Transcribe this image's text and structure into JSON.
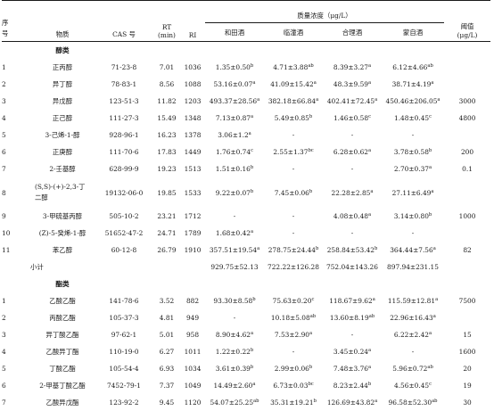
{
  "headers": {
    "no": "序号",
    "name": "物质",
    "cas": "CAS 号",
    "rt": "RT",
    "rt_unit": "(min)",
    "ri": "RI",
    "conc": "质量浓度（μg/L）",
    "threshold": "阈值",
    "threshold_unit": "(μg/L)",
    "wines": [
      "和田酒",
      "临潼酒",
      "合理酒",
      "蒙自酒"
    ]
  },
  "sections": [
    {
      "title": "醇类",
      "rows": [
        {
          "no": "1",
          "name": "正丙醇",
          "cas": "71-23-8",
          "rt": "7.01",
          "ri": "1036",
          "v": [
            [
              "1.35±0.50",
              "b"
            ],
            [
              "4.71±3.88",
              "ab"
            ],
            [
              "8.39±3.27",
              "a"
            ],
            [
              "6.12±4.66",
              "ab"
            ]
          ],
          "thr": ""
        },
        {
          "no": "2",
          "name": "异丁醇",
          "cas": "78-83-1",
          "rt": "8.56",
          "ri": "1088",
          "v": [
            [
              "53.16±0.07",
              "a"
            ],
            [
              "41.09±15.42",
              "a"
            ],
            [
              "48.3±9.59",
              "a"
            ],
            [
              "38.71±4.19",
              "a"
            ]
          ],
          "thr": ""
        },
        {
          "no": "3",
          "name": "异戊醇",
          "cas": "123-51-3",
          "rt": "11.82",
          "ri": "1203",
          "v": [
            [
              "493.37±28.56",
              "a"
            ],
            [
              "382.18±66.84",
              "a"
            ],
            [
              "402.41±72.45",
              "a"
            ],
            [
              "450.46±206.05",
              "a"
            ]
          ],
          "thr": "3000"
        },
        {
          "no": "4",
          "name": "正己醇",
          "cas": "111-27-3",
          "rt": "15.49",
          "ri": "1348",
          "v": [
            [
              "7.13±0.87",
              "a"
            ],
            [
              "5.49±0.85",
              "b"
            ],
            [
              "1.46±0.58",
              "c"
            ],
            [
              "1.48±0.45",
              "c"
            ]
          ],
          "thr": "4800"
        },
        {
          "no": "5",
          "name": "3-己烯-1-醇",
          "cas": "928-96-1",
          "rt": "16.23",
          "ri": "1378",
          "v": [
            [
              "3.06±1.2",
              "a"
            ],
            [
              "-",
              ""
            ],
            [
              "-",
              ""
            ],
            [
              "-",
              ""
            ]
          ],
          "thr": ""
        },
        {
          "no": "6",
          "name": "正庚醇",
          "cas": "111-70-6",
          "rt": "17.83",
          "ri": "1449",
          "v": [
            [
              "1.76±0.74",
              "c"
            ],
            [
              "2.55±1.37",
              "bc"
            ],
            [
              "6.28±0.62",
              "a"
            ],
            [
              "3.78±0.58",
              "b"
            ]
          ],
          "thr": "200"
        },
        {
          "no": "7",
          "name": "2-壬基醇",
          "cas": "628-99-9",
          "rt": "19.23",
          "ri": "1513",
          "v": [
            [
              "1.51±0.16",
              "b"
            ],
            [
              "-",
              ""
            ],
            [
              "-",
              ""
            ],
            [
              "2.70±0.37",
              "a"
            ]
          ],
          "thr": "0.1"
        },
        {
          "no": "8",
          "name": "(S,S)-(+)-2,3-丁二醇",
          "cas": "19132-06-0",
          "rt": "19.85",
          "ri": "1533",
          "v": [
            [
              "9.22±0.07",
              "b"
            ],
            [
              "7.45±0.06",
              "b"
            ],
            [
              "22.28±2.85",
              "a"
            ],
            [
              "27.11±6.49",
              "a"
            ]
          ],
          "thr": "",
          "tall": true
        },
        {
          "no": "9",
          "name": "3-甲硫基丙醇",
          "cas": "505-10-2",
          "rt": "23.21",
          "ri": "1712",
          "v": [
            [
              "-",
              ""
            ],
            [
              "-",
              ""
            ],
            [
              "4.08±0.48",
              "a"
            ],
            [
              "3.14±0.80",
              "b"
            ]
          ],
          "thr": "1000"
        },
        {
          "no": "10",
          "name": "(Z)-5-癸烯-1-醇",
          "cas": "51652-47-2",
          "rt": "24.71",
          "ri": "1789",
          "v": [
            [
              "1.68±0.42",
              "a"
            ],
            [
              "-",
              ""
            ],
            [
              "-",
              ""
            ],
            [
              "-",
              ""
            ]
          ],
          "thr": ""
        },
        {
          "no": "11",
          "name": "苯乙醇",
          "cas": "60-12-8",
          "rt": "26.79",
          "ri": "1910",
          "v": [
            [
              "357.51±19.54",
              "a"
            ],
            [
              "278.75±24.44",
              "b"
            ],
            [
              "258.84±53.42",
              "b"
            ],
            [
              "364.44±7.56",
              "a"
            ]
          ],
          "thr": "82"
        }
      ],
      "subtotal": {
        "label": "小计",
        "v": [
          "929.75±52.13",
          "722.22±126.28",
          "752.04±143.26",
          "897.94±231.15"
        ]
      }
    },
    {
      "title": "酯类",
      "rows": [
        {
          "no": "1",
          "name": "乙酸乙酯",
          "cas": "141-78-6",
          "rt": "3.52",
          "ri": "882",
          "v": [
            [
              "93.30±8.58",
              "b"
            ],
            [
              "75.63±0.20",
              "c"
            ],
            [
              "118.67±9.62",
              "a"
            ],
            [
              "115.59±12.81",
              "a"
            ]
          ],
          "thr": "7500"
        },
        {
          "no": "2",
          "name": "丙酸乙酯",
          "cas": "105-37-3",
          "rt": "4.81",
          "ri": "949",
          "v": [
            [
              "-",
              ""
            ],
            [
              "10.18±5.08",
              "ab"
            ],
            [
              "13.60±8.19",
              "ab"
            ],
            [
              "22.96±16.43",
              "a"
            ]
          ],
          "thr": ""
        },
        {
          "no": "3",
          "name": "异丁酸乙酯",
          "cas": "97-62-1",
          "rt": "5.01",
          "ri": "958",
          "v": [
            [
              "8.90±4.62",
              "a"
            ],
            [
              "7.53±2.90",
              "a"
            ],
            [
              "-",
              ""
            ],
            [
              "6.22±2.42",
              "a"
            ]
          ],
          "thr": "15"
        },
        {
          "no": "4",
          "name": "乙酸异丁酯",
          "cas": "110-19-0",
          "rt": "6.27",
          "ri": "1011",
          "v": [
            [
              "1.22±0.22",
              "b"
            ],
            [
              "-",
              ""
            ],
            [
              "3.45±0.24",
              "a"
            ],
            [
              "-",
              ""
            ]
          ],
          "thr": "1600"
        },
        {
          "no": "5",
          "name": "丁酸乙酯",
          "cas": "105-54-4",
          "rt": "6.93",
          "ri": "1034",
          "v": [
            [
              "3.61±0.39",
              "b"
            ],
            [
              "2.99±0.06",
              "b"
            ],
            [
              "7.48±3.76",
              "a"
            ],
            [
              "5.96±0.72",
              "ab"
            ]
          ],
          "thr": "20"
        },
        {
          "no": "6",
          "name": "2-甲基丁酸乙酯",
          "cas": "7452-79-1",
          "rt": "7.37",
          "ri": "1049",
          "v": [
            [
              "14.49±2.60",
              "a"
            ],
            [
              "6.73±0.03",
              "bc"
            ],
            [
              "8.23±2.44",
              "b"
            ],
            [
              "4.56±0.45",
              "c"
            ]
          ],
          "thr": "19"
        },
        {
          "no": "7",
          "name": "乙酸异戊酯",
          "cas": "123-92-2",
          "rt": "9.45",
          "ri": "1120",
          "v": [
            [
              "54.07±25.25",
              "ab"
            ],
            [
              "35.31±19.21",
              "b"
            ],
            [
              "126.69±43.82",
              "a"
            ],
            [
              "96.58±52.30",
              "ab"
            ]
          ],
          "thr": "30"
        }
      ]
    }
  ]
}
